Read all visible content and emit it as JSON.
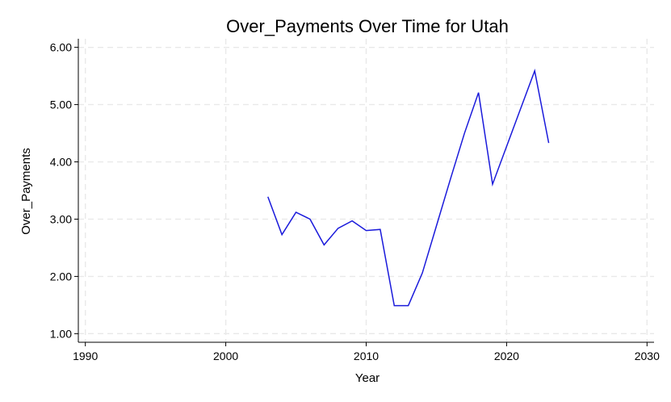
{
  "chart_data": {
    "type": "line",
    "title": "Over_Payments Over Time for Utah",
    "xlabel": "Year",
    "ylabel": "Over_Payments",
    "xlim": [
      1989.5,
      2030.5
    ],
    "ylim": [
      0.85,
      6.15
    ],
    "xticks": [
      1990,
      2000,
      2010,
      2020,
      2030
    ],
    "yticks": [
      1.0,
      2.0,
      3.0,
      4.0,
      5.0,
      6.0
    ],
    "ytick_format": "2dp",
    "grid": true,
    "series": [
      {
        "color": "#1a1adb",
        "x": [
          2003,
          2004,
          2005,
          2006,
          2007,
          2008,
          2009,
          2010,
          2011,
          2012,
          2013,
          2014,
          2015,
          2016,
          2017,
          2018,
          2019,
          2020,
          2021,
          2022,
          2023
        ],
        "y": [
          3.39,
          2.73,
          3.12,
          3.0,
          2.55,
          2.84,
          2.97,
          2.8,
          2.82,
          1.49,
          1.49,
          2.06,
          2.88,
          3.7,
          4.5,
          5.21,
          3.61,
          4.27,
          4.93,
          5.59,
          4.33
        ]
      }
    ]
  }
}
